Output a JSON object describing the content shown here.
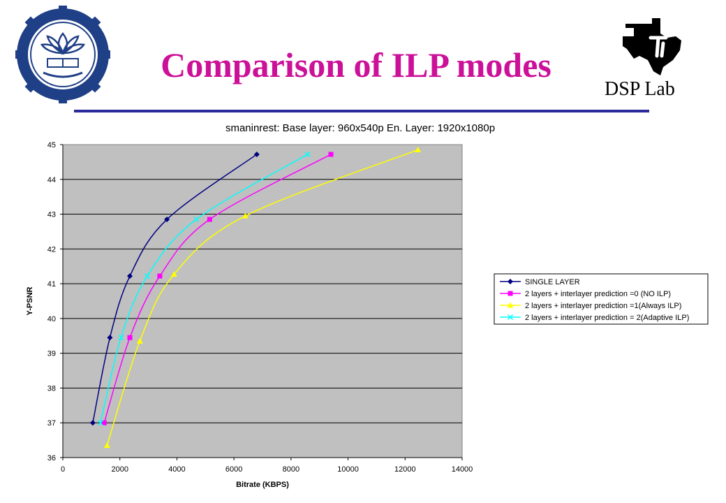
{
  "slide": {
    "title": "Comparison of ILP modes",
    "lab_label": "DSP Lab",
    "logos": [
      "institute-seal-icon",
      "ti-texas-logo-icon"
    ],
    "title_color": "#cc1199",
    "rule_color": "#2a2a9a"
  },
  "chart_data": {
    "type": "line",
    "title": "smaninrest: Base layer: 960x540p En. Layer: 1920x1080p",
    "xlabel": "Bitrate (KBPS)",
    "ylabel": "Y-PSNR",
    "xlim": [
      0,
      14000
    ],
    "ylim": [
      36,
      45
    ],
    "xticks": [
      0,
      2000,
      4000,
      6000,
      8000,
      10000,
      12000,
      14000
    ],
    "yticks": [
      36,
      37,
      38,
      39,
      40,
      41,
      42,
      43,
      44,
      45
    ],
    "grid": "horizontal",
    "plot_background": "#c0c0c0",
    "legend_position": "right",
    "series": [
      {
        "name": "SINGLE LAYER",
        "color": "#000080",
        "marker": "diamond",
        "x": [
          1050,
          1650,
          2350,
          3650,
          6800
        ],
        "y": [
          37.0,
          39.45,
          41.22,
          42.85,
          44.72
        ]
      },
      {
        "name": "2 layers + interlayer prediction =0 (NO ILP)",
        "color": "#ff00ff",
        "marker": "square",
        "x": [
          1450,
          2350,
          3400,
          5150,
          9400
        ],
        "y": [
          37.0,
          39.45,
          41.22,
          42.85,
          44.72
        ]
      },
      {
        "name": "2 layers + interlayer prediction =1(Always ILP)",
        "color": "#ffff00",
        "marker": "triangle",
        "x": [
          1550,
          2700,
          3900,
          6400,
          12450
        ],
        "y": [
          36.35,
          39.35,
          41.27,
          42.95,
          44.85
        ]
      },
      {
        "name": "2 layers + interlayer prediction = 2(Adaptive ILP)",
        "color": "#00ffff",
        "marker": "x",
        "x": [
          1320,
          2040,
          2960,
          4680,
          8580
        ],
        "y": [
          37.0,
          39.45,
          41.22,
          42.85,
          44.72
        ]
      }
    ]
  }
}
